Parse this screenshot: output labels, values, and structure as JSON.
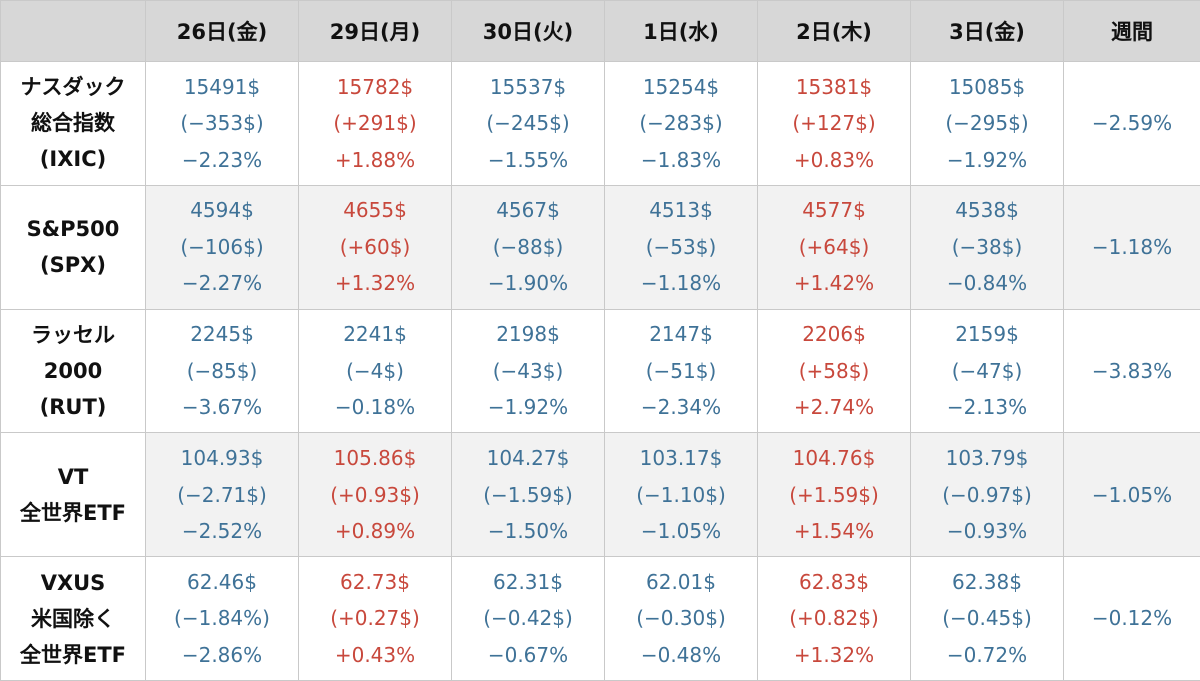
{
  "header": {
    "days": [
      "26日(金)",
      "29日(月)",
      "30日(火)",
      "1日(水)",
      "2日(木)",
      "3日(金)"
    ],
    "weekly": "週間"
  },
  "colors": {
    "up": "#c8483c",
    "down": "#3f7297",
    "header_bg": "#d7d7d7",
    "alt_row_bg": "#f2f2f2"
  },
  "rows": [
    {
      "label": [
        "ナスダック",
        "総合指数",
        "(IXIC)"
      ],
      "days": [
        {
          "price": "15491$",
          "change": "(−353$)",
          "pct": "−2.23%",
          "dir": "down"
        },
        {
          "price": "15782$",
          "change": "(+291$)",
          "pct": "+1.88%",
          "dir": "up"
        },
        {
          "price": "15537$",
          "change": "(−245$)",
          "pct": "−1.55%",
          "dir": "down"
        },
        {
          "price": "15254$",
          "change": "(−283$)",
          "pct": "−1.83%",
          "dir": "down"
        },
        {
          "price": "15381$",
          "change": "(+127$)",
          "pct": "+0.83%",
          "dir": "up"
        },
        {
          "price": "15085$",
          "change": "(−295$)",
          "pct": "−1.92%",
          "dir": "down"
        }
      ],
      "weekly": "−2.59%"
    },
    {
      "label": [
        "S&P500",
        "(SPX)"
      ],
      "days": [
        {
          "price": "4594$",
          "change": "(−106$)",
          "pct": "−2.27%",
          "dir": "down"
        },
        {
          "price": "4655$",
          "change": "(+60$)",
          "pct": "+1.32%",
          "dir": "up"
        },
        {
          "price": "4567$",
          "change": "(−88$)",
          "pct": "−1.90%",
          "dir": "down"
        },
        {
          "price": "4513$",
          "change": "(−53$)",
          "pct": "−1.18%",
          "dir": "down"
        },
        {
          "price": "4577$",
          "change": "(+64$)",
          "pct": "+1.42%",
          "dir": "up"
        },
        {
          "price": "4538$",
          "change": "(−38$)",
          "pct": "−0.84%",
          "dir": "down"
        }
      ],
      "weekly": "−1.18%"
    },
    {
      "label": [
        "ラッセル",
        "2000",
        "(RUT)"
      ],
      "days": [
        {
          "price": "2245$",
          "change": "(−85$)",
          "pct": "−3.67%",
          "dir": "down"
        },
        {
          "price": "2241$",
          "change": "(−4$)",
          "pct": "−0.18%",
          "dir": "down"
        },
        {
          "price": "2198$",
          "change": "(−43$)",
          "pct": "−1.92%",
          "dir": "down"
        },
        {
          "price": "2147$",
          "change": "(−51$)",
          "pct": "−2.34%",
          "dir": "down"
        },
        {
          "price": "2206$",
          "change": "(+58$)",
          "pct": "+2.74%",
          "dir": "up"
        },
        {
          "price": "2159$",
          "change": "(−47$)",
          "pct": "−2.13%",
          "dir": "down"
        }
      ],
      "weekly": "−3.83%"
    },
    {
      "label": [
        "VT",
        "全世界ETF"
      ],
      "days": [
        {
          "price": "104.93$",
          "change": "(−2.71$)",
          "pct": "−2.52%",
          "dir": "down"
        },
        {
          "price": "105.86$",
          "change": "(+0.93$)",
          "pct": "+0.89%",
          "dir": "up"
        },
        {
          "price": "104.27$",
          "change": "(−1.59$)",
          "pct": "−1.50%",
          "dir": "down"
        },
        {
          "price": "103.17$",
          "change": "(−1.10$)",
          "pct": "−1.05%",
          "dir": "down"
        },
        {
          "price": "104.76$",
          "change": "(+1.59$)",
          "pct": "+1.54%",
          "dir": "up"
        },
        {
          "price": "103.79$",
          "change": "(−0.97$)",
          "pct": "−0.93%",
          "dir": "down"
        }
      ],
      "weekly": "−1.05%"
    },
    {
      "label": [
        "VXUS",
        "米国除く",
        "全世界ETF"
      ],
      "days": [
        {
          "price": "62.46$",
          "change": "(−1.84%)",
          "pct": "−2.86%",
          "dir": "down"
        },
        {
          "price": "62.73$",
          "change": "(+0.27$)",
          "pct": "+0.43%",
          "dir": "up"
        },
        {
          "price": "62.31$",
          "change": "(−0.42$)",
          "pct": "−0.67%",
          "dir": "down"
        },
        {
          "price": "62.01$",
          "change": "(−0.30$)",
          "pct": "−0.48%",
          "dir": "down"
        },
        {
          "price": "62.83$",
          "change": "(+0.82$)",
          "pct": "+1.32%",
          "dir": "up"
        },
        {
          "price": "62.38$",
          "change": "(−0.45$)",
          "pct": "−0.72%",
          "dir": "down"
        }
      ],
      "weekly": "−0.12%"
    }
  ]
}
